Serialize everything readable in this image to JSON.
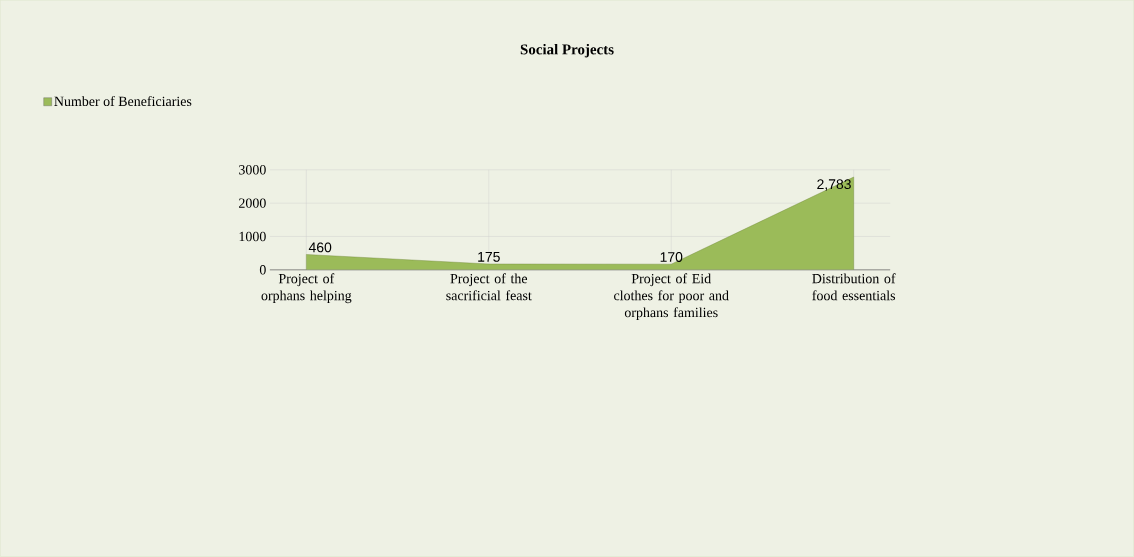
{
  "chart_data": {
    "type": "area",
    "title": "Social Projects",
    "categories": [
      "Project of orphans helping",
      "Project of the sacrificial feast",
      "Project of Eid clothes for poor and orphans families",
      "Distribution of food essentials"
    ],
    "series": [
      {
        "name": "Number of Beneficiaries",
        "color": "#9bbb59",
        "values": [
          460,
          175,
          170,
          2783
        ],
        "value_labels": [
          "460",
          "175",
          "170",
          "2,783"
        ]
      }
    ],
    "ylim": [
      0,
      3000
    ],
    "yticks": [
      0,
      1000,
      2000,
      3000
    ],
    "grid": true,
    "legend": "top left"
  }
}
